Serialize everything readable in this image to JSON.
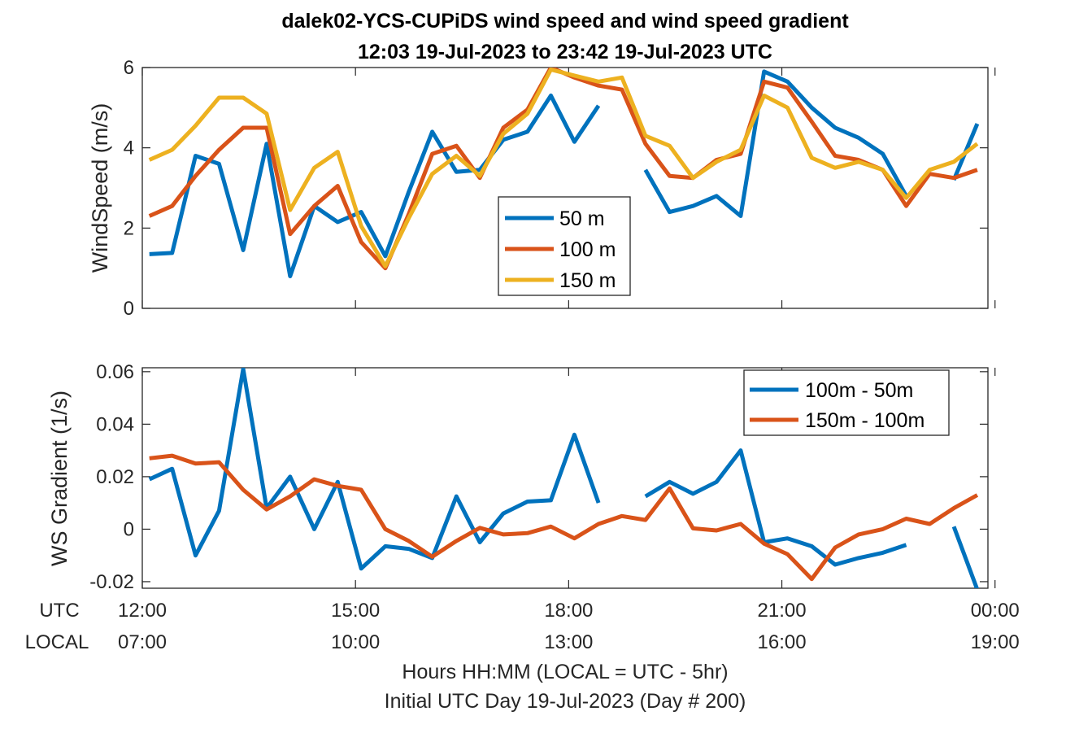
{
  "title_line1": "dalek02-YCS-CUPiDS  wind speed and wind speed gradient",
  "title_line2": "12:03 19-Jul-2023 to 23:42 19-Jul-2023  UTC",
  "x_row_labels": [
    "UTC",
    "LOCAL"
  ],
  "x_utc_ticks": [
    "12:00",
    "15:00",
    "18:00",
    "21:00",
    "00:00"
  ],
  "x_local_ticks": [
    "07:00",
    "10:00",
    "13:00",
    "16:00",
    "19:00"
  ],
  "x_tick_hours": [
    12,
    15,
    18,
    21,
    24
  ],
  "xlabel_line1": "Hours HH:MM  (LOCAL = UTC - 5hr)",
  "xlabel_line2": "Initial UTC Day 19-Jul-2023 (Day # 200)",
  "colors": {
    "blue": "#0072BD",
    "orange": "#D95319",
    "yellow": "#EDB120"
  },
  "chart_data": [
    {
      "type": "line",
      "ylabel": "WindSpeed (m/s)",
      "xlim": [
        12.0,
        23.9
      ],
      "ylim": [
        0,
        6
      ],
      "yticks": [
        0,
        2,
        4,
        6
      ],
      "ytick_labels": [
        "0",
        "2",
        "4",
        "6"
      ],
      "grid": false,
      "legend_position": "center",
      "x": [
        12.1,
        12.42,
        12.75,
        13.08,
        13.42,
        13.75,
        14.08,
        14.42,
        14.75,
        15.08,
        15.42,
        15.75,
        16.08,
        16.42,
        16.75,
        17.08,
        17.42,
        17.75,
        18.08,
        18.42,
        18.75,
        19.08,
        19.42,
        19.75,
        20.08,
        20.42,
        20.75,
        21.08,
        21.42,
        21.75,
        22.08,
        22.42,
        22.75,
        23.08,
        23.42,
        23.75
      ],
      "series": [
        {
          "name": "50 m",
          "color": "#0072BD",
          "values": [
            1.35,
            1.38,
            3.8,
            3.6,
            1.45,
            4.1,
            0.8,
            2.55,
            2.15,
            2.4,
            1.3,
            2.9,
            4.4,
            3.4,
            3.45,
            4.2,
            4.4,
            5.3,
            4.15,
            5.05,
            null,
            3.45,
            2.4,
            2.55,
            2.8,
            2.3,
            5.9,
            5.65,
            5.0,
            4.5,
            4.25,
            3.85,
            2.8,
            null,
            3.2,
            4.6
          ]
        },
        {
          "name": "100 m",
          "color": "#D95319",
          "values": [
            2.3,
            2.55,
            3.3,
            3.95,
            4.5,
            4.5,
            1.85,
            2.55,
            3.05,
            1.65,
            1.0,
            2.35,
            3.85,
            4.05,
            3.25,
            4.5,
            4.95,
            6.0,
            5.75,
            5.55,
            5.45,
            4.1,
            3.3,
            3.25,
            3.7,
            3.85,
            5.65,
            5.5,
            4.65,
            3.8,
            3.7,
            3.45,
            2.55,
            3.35,
            3.25,
            3.45
          ]
        },
        {
          "name": "150 m",
          "color": "#EDB120",
          "values": [
            3.7,
            3.95,
            4.55,
            5.25,
            5.25,
            4.85,
            2.45,
            3.5,
            3.9,
            2.05,
            1.05,
            2.25,
            3.35,
            3.8,
            3.3,
            4.35,
            4.85,
            5.95,
            5.8,
            5.65,
            5.75,
            4.3,
            4.05,
            3.25,
            3.65,
            3.95,
            5.3,
            5.0,
            3.75,
            3.5,
            3.65,
            3.45,
            2.75,
            3.45,
            3.65,
            4.1
          ]
        }
      ]
    },
    {
      "type": "line",
      "ylabel": "WS Gradient (1/s)",
      "xlim": [
        12.0,
        23.9
      ],
      "ylim": [
        -0.0225,
        0.0615
      ],
      "yticks": [
        -0.02,
        0,
        0.02,
        0.04,
        0.06
      ],
      "ytick_labels": [
        "-0.02",
        "0",
        "0.02",
        "0.04",
        "0.06"
      ],
      "grid": false,
      "legend_position": "top-right",
      "x": [
        12.1,
        12.42,
        12.75,
        13.08,
        13.42,
        13.75,
        14.08,
        14.42,
        14.75,
        15.08,
        15.42,
        15.75,
        16.08,
        16.42,
        16.75,
        17.08,
        17.42,
        17.75,
        18.08,
        18.42,
        18.75,
        19.08,
        19.42,
        19.75,
        20.08,
        20.42,
        20.75,
        21.08,
        21.42,
        21.75,
        22.08,
        22.42,
        22.75,
        23.08,
        23.42,
        23.75
      ],
      "series": [
        {
          "name": "100m - 50m",
          "color": "#0072BD",
          "values": [
            0.019,
            0.023,
            -0.01,
            0.007,
            0.061,
            0.008,
            0.02,
            0.0,
            0.018,
            -0.015,
            -0.0065,
            -0.0075,
            -0.011,
            0.0125,
            -0.005,
            0.006,
            0.0105,
            0.011,
            0.036,
            0.01,
            null,
            0.0125,
            0.018,
            0.0135,
            0.018,
            0.03,
            -0.005,
            -0.0035,
            -0.0065,
            -0.0135,
            -0.011,
            -0.009,
            -0.006,
            null,
            0.001,
            -0.023
          ]
        },
        {
          "name": "150m - 100m",
          "color": "#D95319",
          "values": [
            0.027,
            0.028,
            0.025,
            0.0255,
            0.015,
            0.0075,
            0.0125,
            0.019,
            0.0165,
            0.015,
            0.0,
            -0.0045,
            -0.0105,
            -0.0045,
            0.0005,
            -0.002,
            -0.0015,
            0.001,
            -0.0035,
            0.002,
            0.005,
            0.0035,
            0.0155,
            0.0003,
            -0.0005,
            0.002,
            -0.0055,
            -0.0095,
            -0.019,
            -0.007,
            -0.002,
            0.0,
            0.004,
            0.002,
            0.008,
            0.013
          ]
        }
      ]
    }
  ]
}
